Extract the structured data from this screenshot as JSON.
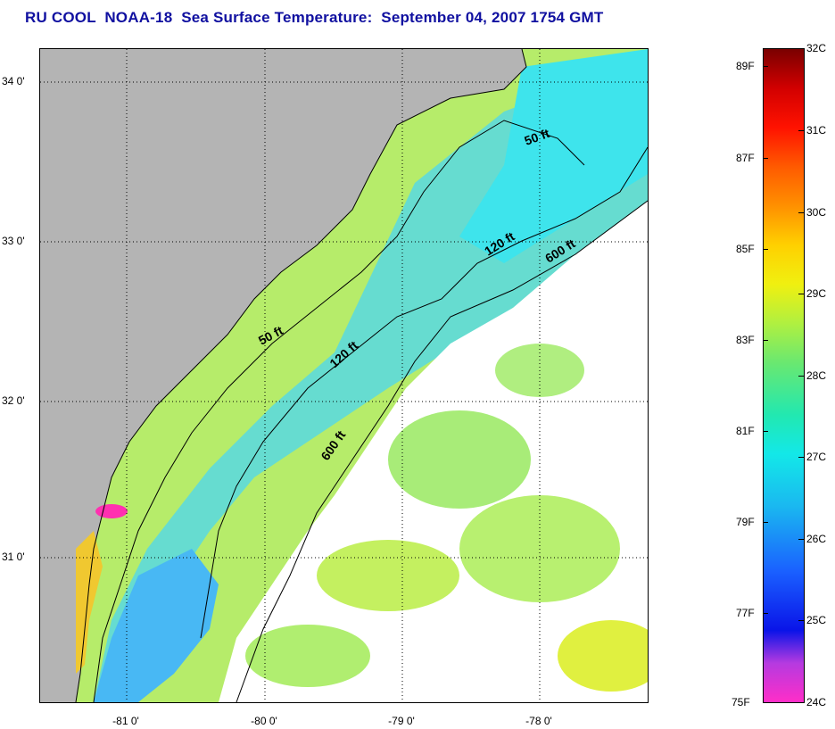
{
  "title": "RU COOL  NOAA-18  Sea Surface Temperature:  September 04, 2007 1754 GMT",
  "map": {
    "lat_labels": [
      "34 0'",
      "33 0'",
      "32 0'",
      "31 0'"
    ],
    "lon_labels": [
      "-81 0'",
      "-80 0'",
      "-79 0'",
      "-78 0'"
    ],
    "contour_labels": {
      "fifty_upper": "50 ft",
      "fifty_lower": "50 ft",
      "one_twenty_upper": "120 ft",
      "one_twenty_lower": "120 ft",
      "six_hundred_upper": "600 ft",
      "six_hundred_lower": "600 ft"
    },
    "colors": {
      "land": "#b4b4b4",
      "cloud": "#ffffff",
      "shelf_water": "#a6e86a",
      "mid_water": "#5cd8d8",
      "offshore_water": "#9ee680",
      "warm_coast": "#f0d040",
      "cold_patch": "#40b4f0",
      "hot_spot": "#ff30b0"
    }
  },
  "colorbar": {
    "celsius": [
      "32C",
      "31C",
      "30C",
      "29C",
      "28C",
      "27C",
      "26C",
      "25C",
      "24C"
    ],
    "fahrenheit": [
      "89F",
      "87F",
      "85F",
      "83F",
      "81F",
      "79F",
      "77F",
      "75F"
    ]
  }
}
